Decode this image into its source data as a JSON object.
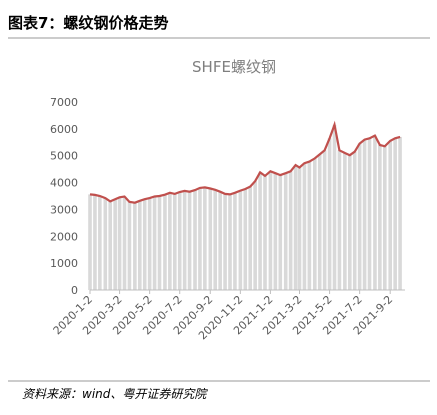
{
  "header": {
    "title": "图表7：螺纹钢价格走势"
  },
  "chart_data": {
    "type": "area",
    "title": "SHFE螺纹钢",
    "x": [
      "2020-1-2",
      "2020-1-12",
      "2020-1-22",
      "2020-2-2",
      "2020-2-12",
      "2020-2-22",
      "2020-3-2",
      "2020-3-12",
      "2020-3-22",
      "2020-4-2",
      "2020-4-12",
      "2020-4-22",
      "2020-5-2",
      "2020-5-12",
      "2020-5-22",
      "2020-6-2",
      "2020-6-12",
      "2020-6-22",
      "2020-7-2",
      "2020-7-12",
      "2020-7-22",
      "2020-8-2",
      "2020-8-12",
      "2020-8-22",
      "2020-9-2",
      "2020-9-12",
      "2020-9-22",
      "2020-10-2",
      "2020-10-12",
      "2020-10-22",
      "2020-11-2",
      "2020-11-12",
      "2020-11-22",
      "2020-12-2",
      "2020-12-12",
      "2020-12-22",
      "2021-1-2",
      "2021-1-12",
      "2021-1-22",
      "2021-2-2",
      "2021-2-12",
      "2021-2-22",
      "2021-3-2",
      "2021-3-12",
      "2021-3-22",
      "2021-4-2",
      "2021-4-12",
      "2021-4-22",
      "2021-5-2",
      "2021-5-12",
      "2021-5-22",
      "2021-6-2",
      "2021-6-12",
      "2021-6-22",
      "2021-7-2",
      "2021-7-12",
      "2021-7-22",
      "2021-8-2",
      "2021-8-12",
      "2021-8-22",
      "2021-9-2",
      "2021-9-12",
      "2021-9-22"
    ],
    "series": [
      {
        "name": "SHFE螺纹钢",
        "color": "#c0504d",
        "fill": "#d9d9d9",
        "values": [
          3560,
          3540,
          3500,
          3420,
          3300,
          3380,
          3450,
          3480,
          3280,
          3250,
          3320,
          3380,
          3420,
          3480,
          3500,
          3550,
          3620,
          3580,
          3650,
          3690,
          3660,
          3720,
          3800,
          3820,
          3780,
          3730,
          3660,
          3580,
          3560,
          3620,
          3700,
          3760,
          3850,
          4050,
          4380,
          4250,
          4420,
          4350,
          4280,
          4350,
          4420,
          4650,
          4560,
          4720,
          4780,
          4900,
          5050,
          5200,
          5650,
          6150,
          5200,
          5100,
          5020,
          5150,
          5450,
          5600,
          5650,
          5750,
          5400,
          5350,
          5550,
          5650,
          5700
        ]
      }
    ],
    "xlim": [
      "2020-1-2",
      "2021-10-2"
    ],
    "xticks": [
      "2020-1-2",
      "2020-3-2",
      "2020-5-2",
      "2020-7-2",
      "2020-9-2",
      "2020-11-2",
      "2021-1-2",
      "2021-3-2",
      "2021-5-2",
      "2021-7-2",
      "2021-9-2"
    ],
    "ylim": [
      0,
      7000
    ],
    "yticks": [
      0,
      1000,
      2000,
      3000,
      4000,
      5000,
      6000,
      7000
    ],
    "grid": false
  },
  "footer": {
    "source": "资料来源：wind、粤开证券研究院"
  }
}
